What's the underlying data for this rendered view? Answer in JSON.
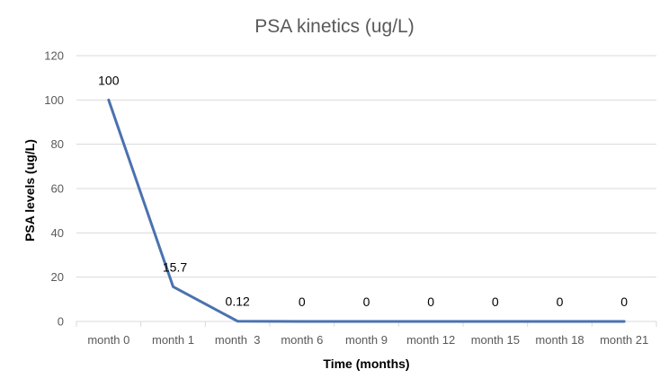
{
  "chart_data": {
    "type": "line",
    "title": "PSA kinetics (ug/L)",
    "xlabel": "Time (months)",
    "ylabel": "PSA levels (ug/L)",
    "categories": [
      "month 0",
      "month 1",
      "month  3",
      "month 6",
      "month 9",
      "month 12",
      "month 15",
      "month 18",
      "month 21"
    ],
    "series": [
      {
        "values": [
          100,
          15.7,
          0.12,
          0,
          0,
          0,
          0,
          0,
          0
        ],
        "data_labels": [
          "100",
          "15.7",
          "0.12",
          "0",
          "0",
          "0",
          "0",
          "0",
          "0"
        ],
        "color": "#4a72b0"
      }
    ],
    "ylim": [
      0,
      120
    ],
    "yticks": [
      0,
      20,
      40,
      60,
      80,
      100,
      120
    ],
    "ytick_labels": [
      "0",
      "20",
      "40",
      "60",
      "80",
      "100",
      "120"
    ],
    "grid": true,
    "legend": "none"
  }
}
